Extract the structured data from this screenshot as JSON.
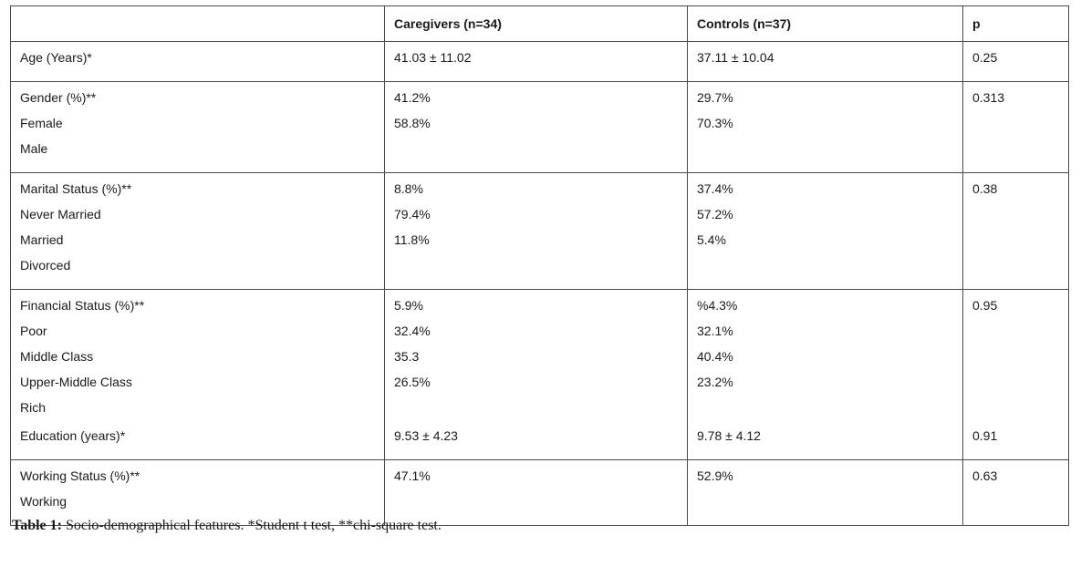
{
  "header": {
    "col0": "",
    "col1": "Caregivers (n=34)",
    "col2": "Controls (n=37)",
    "col3": "p"
  },
  "rows": [
    {
      "labels": [
        "Age (Years)*"
      ],
      "caregivers": [
        "41.03 ± 11.02"
      ],
      "controls": [
        "37.11 ± 10.04"
      ],
      "p": [
        "0.25"
      ]
    },
    {
      "labels": [
        "Gender (%)**",
        "Female",
        "Male"
      ],
      "caregivers": [
        "41.2%",
        "58.8%"
      ],
      "controls": [
        "29.7%",
        "70.3%"
      ],
      "p": [
        "0.313"
      ]
    },
    {
      "labels": [
        "Marital Status (%)**",
        "Never Married",
        "Married",
        "Divorced"
      ],
      "caregivers": [
        "8.8%",
        "79.4%",
        "11.8%"
      ],
      "controls": [
        "37.4%",
        "57.2%",
        "5.4%"
      ],
      "p": [
        "0.38"
      ]
    },
    {
      "labels": [
        "Financial Status (%)**",
        "Poor",
        "Middle Class",
        "Upper-Middle Class",
        "Rich",
        "Education (years)*"
      ],
      "caregivers": [
        "5.9%",
        "32.4%",
        "35.3",
        "26.5%",
        "",
        "9.53 ± 4.23"
      ],
      "controls": [
        "%4.3%",
        "32.1%",
        "40.4%",
        "23.2%",
        "",
        "9.78 ± 4.12"
      ],
      "p": [
        "0.95",
        "",
        "",
        "",
        "",
        "0.91"
      ]
    },
    {
      "labels": [
        "Working Status (%)**",
        "Working"
      ],
      "caregivers": [
        "47.1%"
      ],
      "controls": [
        "52.9%"
      ],
      "p": [
        "0.63"
      ]
    }
  ],
  "caption": {
    "label": "Table 1:",
    "text": " Socio-demographical features. *Student t test, **chi-square test."
  }
}
